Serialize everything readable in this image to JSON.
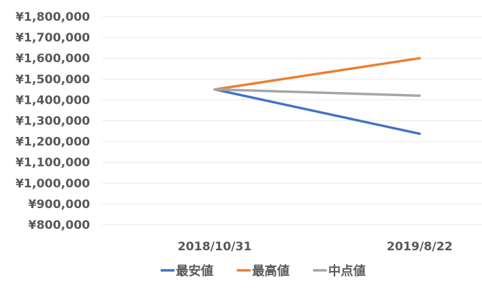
{
  "chart_data": {
    "type": "line",
    "title": "",
    "xlabel": "",
    "ylabel": "",
    "categories": [
      "2018/10/31",
      "2019/8/22"
    ],
    "series": [
      {
        "name": "最安値",
        "color": "#4472C4",
        "values": [
          1450000,
          1237000
        ]
      },
      {
        "name": "最高値",
        "color": "#ED7D31",
        "values": [
          1450000,
          1600000
        ]
      },
      {
        "name": "中点値",
        "color": "#A5A5A5",
        "values": [
          1450000,
          1420000
        ]
      }
    ],
    "ylim": [
      800000,
      1800000
    ],
    "y_ticks": [
      "¥800,000",
      "¥900,000",
      "¥1,000,000",
      "¥1,100,000",
      "¥1,200,000",
      "¥1,300,000",
      "¥1,400,000",
      "¥1,500,000",
      "¥1,600,000",
      "¥1,700,000",
      "¥1,800,000"
    ],
    "y_tick_values": [
      800000,
      900000,
      1000000,
      1100000,
      1200000,
      1300000,
      1400000,
      1500000,
      1600000,
      1700000,
      1800000
    ],
    "grid": true,
    "legend_position": "bottom",
    "gridline_color": "#E6E6E6",
    "text_color": "#595959"
  }
}
